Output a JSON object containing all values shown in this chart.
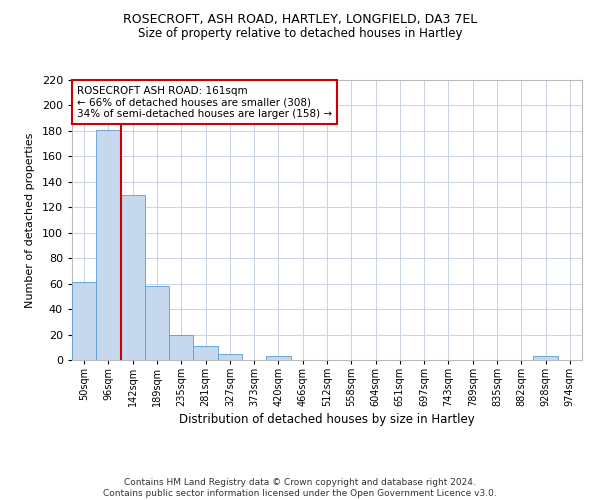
{
  "title1": "ROSECROFT, ASH ROAD, HARTLEY, LONGFIELD, DA3 7EL",
  "title2": "Size of property relative to detached houses in Hartley",
  "xlabel": "Distribution of detached houses by size in Hartley",
  "ylabel": "Number of detached properties",
  "footnote": "Contains HM Land Registry data © Crown copyright and database right 2024.\nContains public sector information licensed under the Open Government Licence v3.0.",
  "categories": [
    "50sqm",
    "96sqm",
    "142sqm",
    "189sqm",
    "235sqm",
    "281sqm",
    "327sqm",
    "373sqm",
    "420sqm",
    "466sqm",
    "512sqm",
    "558sqm",
    "604sqm",
    "651sqm",
    "697sqm",
    "743sqm",
    "789sqm",
    "835sqm",
    "882sqm",
    "928sqm",
    "974sqm"
  ],
  "values": [
    61,
    181,
    130,
    58,
    20,
    11,
    5,
    0,
    3,
    0,
    0,
    0,
    0,
    0,
    0,
    0,
    0,
    0,
    0,
    3,
    0
  ],
  "bar_color": "#c5d8ed",
  "bar_edge_color": "#5b9bd5",
  "annotation_text_line1": "ROSECROFT ASH ROAD: 161sqm",
  "annotation_text_line2": "← 66% of detached houses are smaller (308)",
  "annotation_text_line3": "34% of semi-detached houses are larger (158) →",
  "annotation_box_color": "#ffffff",
  "annotation_box_edge_color": "#cc0000",
  "vline_color": "#cc0000",
  "vline_x": 1.5,
  "background_color": "#ffffff",
  "grid_color": "#c8d4e3",
  "ylim": [
    0,
    220
  ],
  "yticks": [
    0,
    20,
    40,
    60,
    80,
    100,
    120,
    140,
    160,
    180,
    200,
    220
  ],
  "title1_fontsize": 9,
  "title2_fontsize": 8.5,
  "xlabel_fontsize": 8.5,
  "ylabel_fontsize": 8,
  "xtick_fontsize": 7,
  "ytick_fontsize": 8,
  "annotation_fontsize": 7.5,
  "footnote_fontsize": 6.5
}
